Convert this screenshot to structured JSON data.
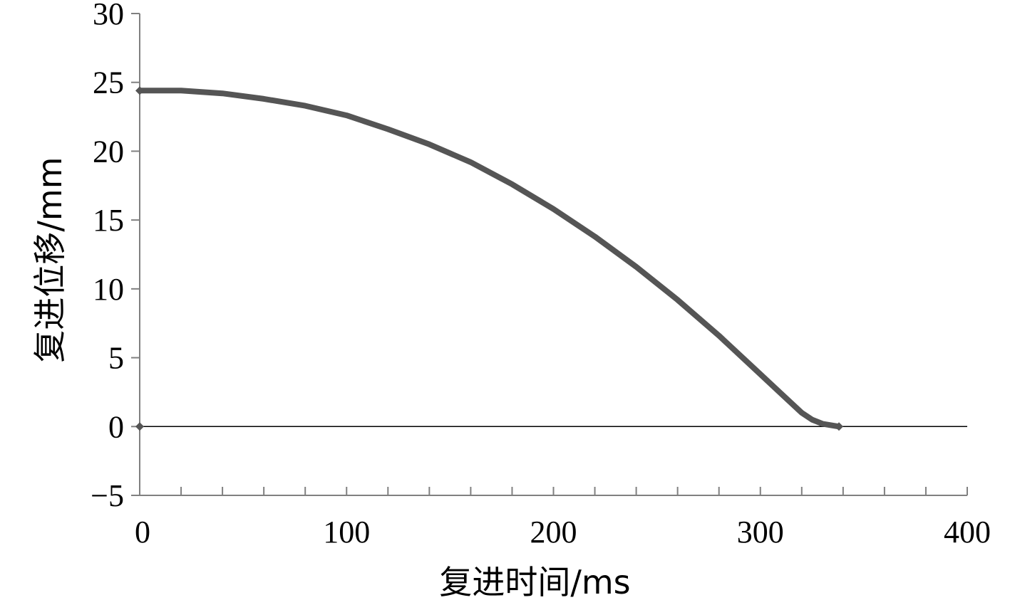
{
  "chart_data": {
    "type": "line",
    "title": "",
    "xlabel": "复进时间/ms",
    "ylabel": "复进位移/mm",
    "xlim": [
      0,
      400
    ],
    "ylim": [
      -5,
      30
    ],
    "x_ticks": [
      0,
      100,
      200,
      300,
      400
    ],
    "x_tick_labels": [
      "0",
      "100",
      "200",
      "300",
      "400"
    ],
    "x_minor_step": 20,
    "y_ticks": [
      -5,
      0,
      5,
      10,
      15,
      20,
      25,
      30
    ],
    "y_tick_labels": [
      "−5",
      "0",
      "5",
      "10",
      "15",
      "20",
      "25",
      "30"
    ],
    "grid": false,
    "legend": "none",
    "series": [
      {
        "color": "#555555",
        "x": [
          0,
          20,
          40,
          60,
          80,
          100,
          120,
          140,
          160,
          180,
          200,
          220,
          240,
          260,
          280,
          300,
          310,
          320,
          325,
          330,
          338
        ],
        "y": [
          24.4,
          24.4,
          24.2,
          23.8,
          23.3,
          22.6,
          21.6,
          20.5,
          19.2,
          17.6,
          15.8,
          13.8,
          11.6,
          9.2,
          6.6,
          3.8,
          2.4,
          1.0,
          0.5,
          0.2,
          0
        ]
      }
    ],
    "markers": [
      {
        "x": 0,
        "y": 24.4
      },
      {
        "x": 0,
        "y": 0
      },
      {
        "x": 338,
        "y": 0
      }
    ]
  }
}
